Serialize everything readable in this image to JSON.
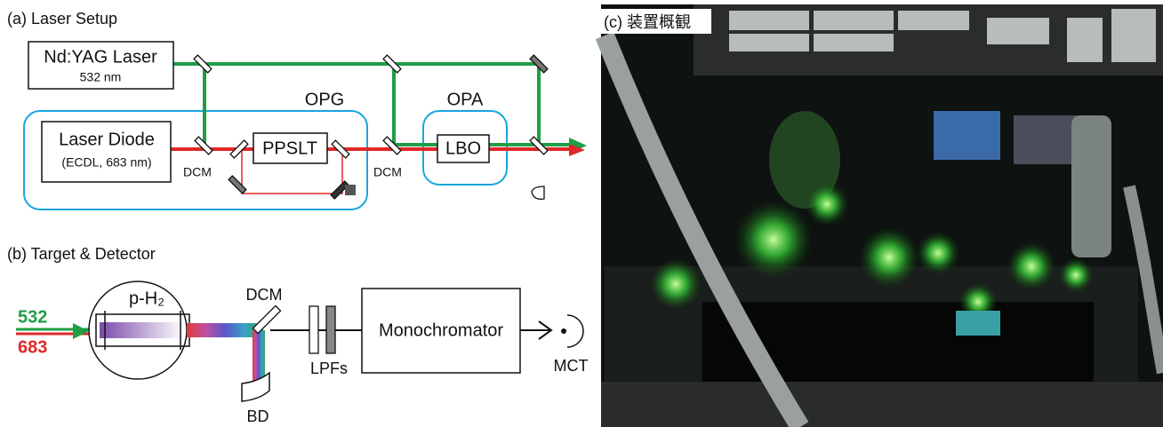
{
  "panel_a": {
    "title": "(a) Laser Setup",
    "pump_laser": {
      "label": "Nd:YAG Laser",
      "wavelength": "532 nm"
    },
    "opg": "OPG",
    "opa": "OPA",
    "seed_laser": {
      "label": "Laser Diode",
      "detail": "(ECDL, 683 nm)"
    },
    "crystal_1": "PPSLT",
    "crystal_2": "LBO",
    "mirror_1": "DCM",
    "mirror_2": "DCM"
  },
  "panel_b": {
    "title": "(b) Target & Detector",
    "beam_green": "532",
    "beam_red": "683",
    "target": "p-H₂",
    "mirror": "DCM",
    "filters": "LPFs",
    "spectrometer": "Monochromator",
    "detector": "MCT",
    "dump": "BD"
  },
  "panel_c": {
    "title": "(c) 装置概観"
  }
}
